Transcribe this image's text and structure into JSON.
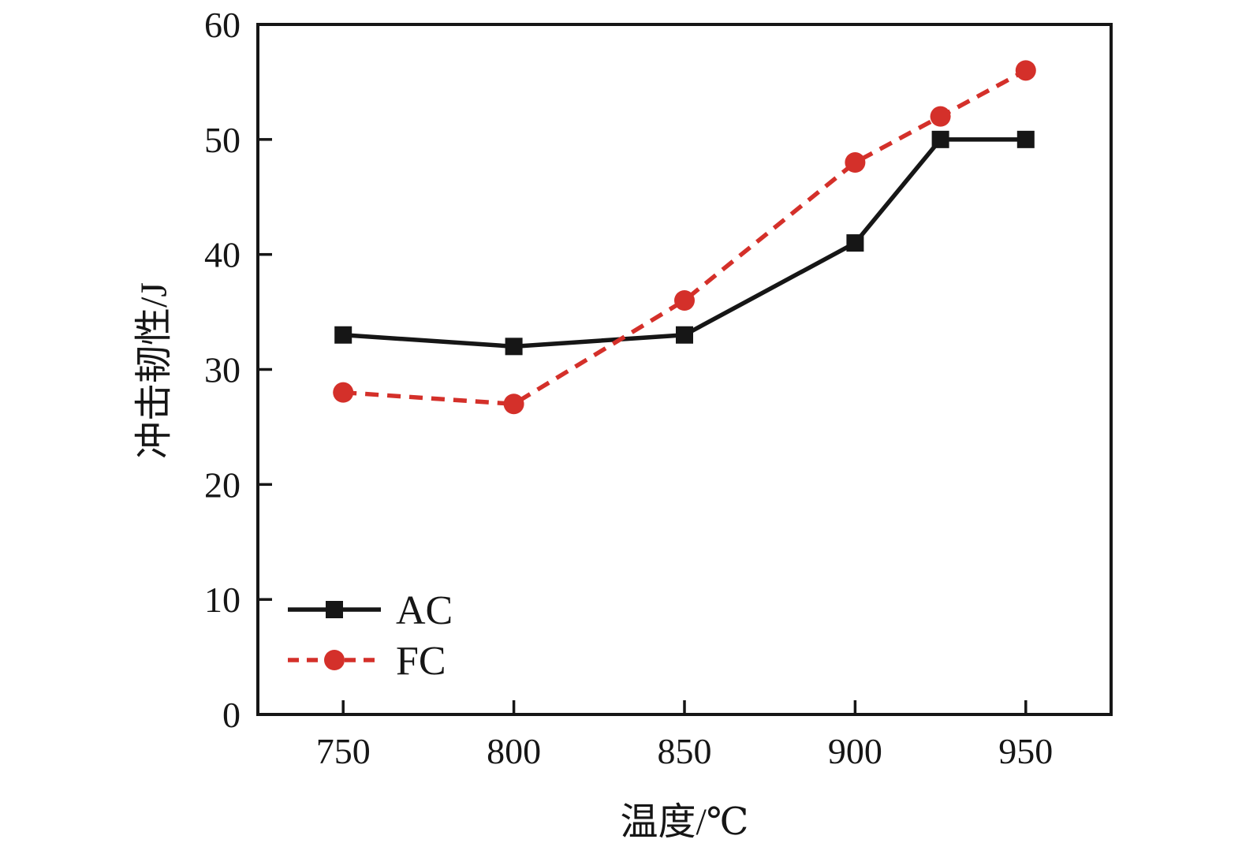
{
  "chart_data": {
    "type": "line",
    "title": "",
    "xlabel": "温度/℃",
    "ylabel": "冲击韧性/J",
    "xlim": [
      725,
      975
    ],
    "ylim": [
      0,
      60
    ],
    "x_ticks": [
      750,
      800,
      850,
      900,
      950
    ],
    "y_ticks": [
      0,
      10,
      20,
      30,
      40,
      50,
      60
    ],
    "grid": false,
    "legend_position": "inside-lower-left",
    "axis_color": "#161616",
    "series": [
      {
        "name": "AC",
        "color": "#161616",
        "line_style": "solid",
        "marker": "square",
        "x": [
          750,
          800,
          850,
          900,
          925,
          950
        ],
        "values": [
          33,
          32,
          33,
          41,
          50,
          50
        ]
      },
      {
        "name": "FC",
        "color": "#d4302a",
        "line_style": "dashed",
        "marker": "circle",
        "x": [
          750,
          800,
          850,
          900,
          925,
          950
        ],
        "values": [
          28,
          27,
          36,
          48,
          52,
          56
        ]
      }
    ]
  }
}
